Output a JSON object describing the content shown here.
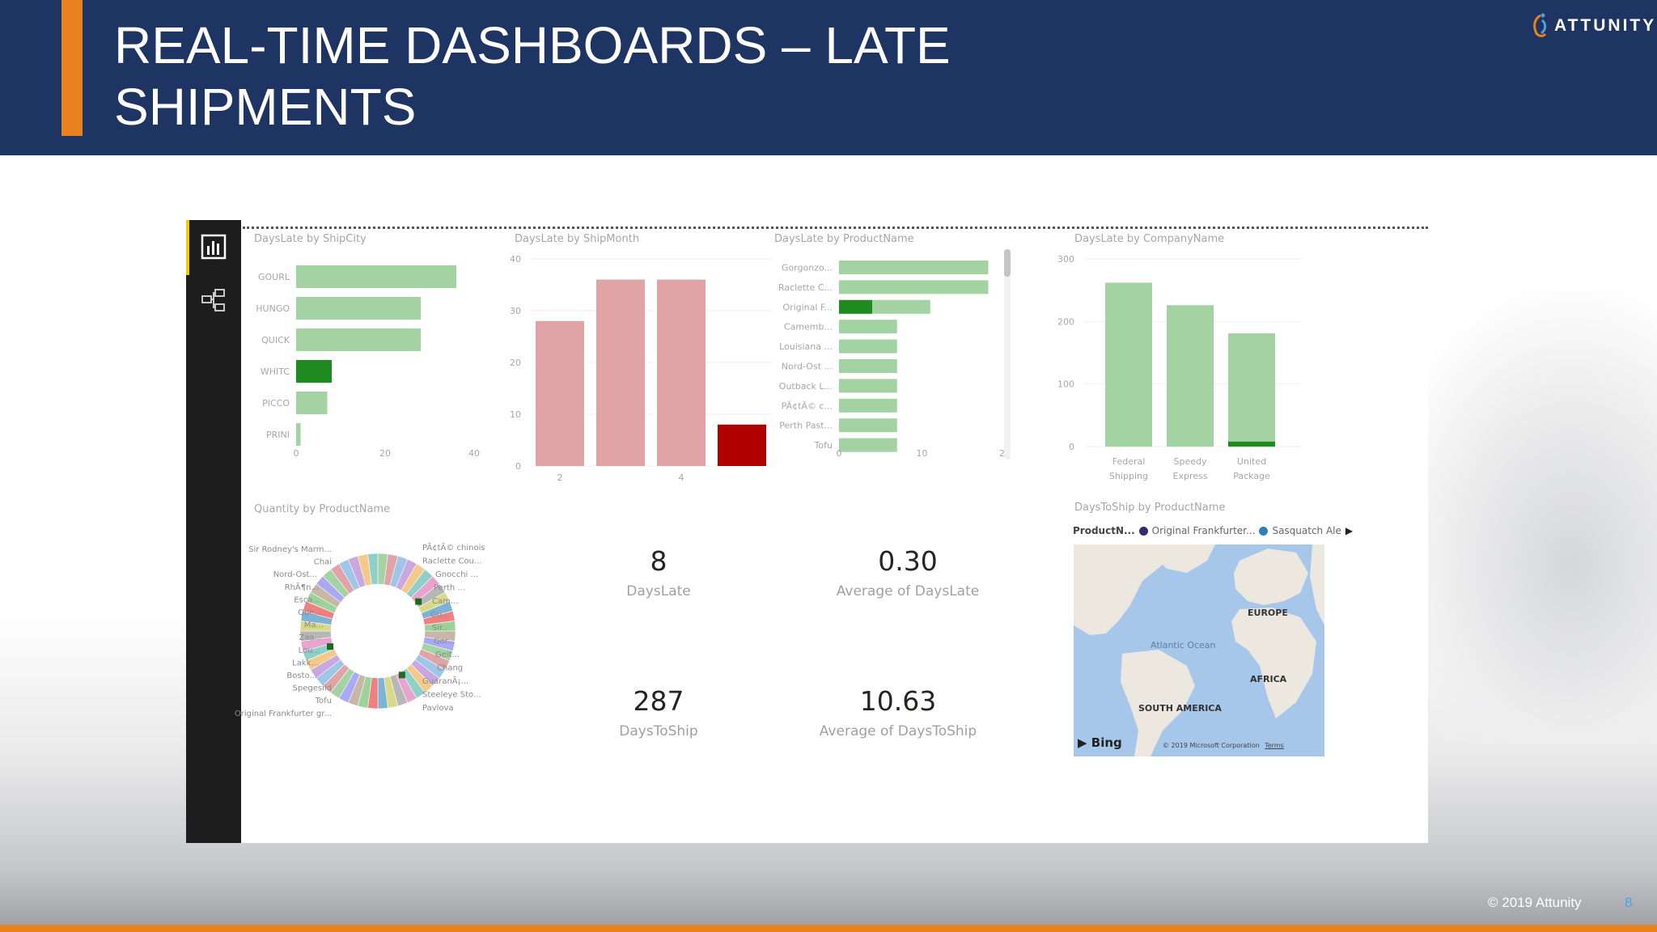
{
  "slide": {
    "title_line1": "REAL-TIME DASHBOARDS – LATE",
    "title_line2": "SHIPMENTS",
    "brand": "ATTUNITY",
    "footer": "© 2019 Attunity",
    "page_number": "8"
  },
  "colors": {
    "header_bg": "#1e3462",
    "accent_orange": "#e8821f",
    "bar_light_green": "#a3d3a3",
    "bar_dark_green": "#1f8a1f",
    "bar_light_red": "#e0a3a6",
    "bar_dark_red": "#b00000"
  },
  "nav": {
    "items": [
      {
        "icon": "report-icon",
        "active": true
      },
      {
        "icon": "data-model-icon",
        "active": false
      }
    ]
  },
  "chart_data": [
    {
      "type": "bar",
      "orientation": "horizontal",
      "title": "DaysLate by ShipCity",
      "categories": [
        "GOURL",
        "HUNGO",
        "QUICK",
        "WHITC",
        "PICCO",
        "PRINI"
      ],
      "values": [
        36,
        28,
        28,
        8,
        7,
        1
      ],
      "highlighted": [
        0,
        0,
        0,
        1,
        0,
        0
      ],
      "xlim": [
        0,
        40
      ],
      "xticks": [
        0,
        20,
        40
      ]
    },
    {
      "type": "bar",
      "title": "DaysLate by ShipMonth",
      "x": [
        2,
        3,
        4,
        5
      ],
      "values": [
        28,
        36,
        36,
        8
      ],
      "highlighted": [
        0,
        0,
        0,
        1
      ],
      "ylim": [
        0,
        40
      ],
      "yticks": [
        0,
        10,
        20,
        30,
        40
      ],
      "xticks": [
        2,
        4
      ]
    },
    {
      "type": "bar",
      "orientation": "horizontal",
      "title": "DaysLate by ProductName",
      "categories": [
        "Gorgonzo...",
        "Raclette C...",
        "Original F...",
        "Camemb...",
        "Louisiana ...",
        "Nord-Ost ...",
        "Outback L...",
        "PÃ¢tÃ© c...",
        "Perth Past...",
        "Tofu"
      ],
      "values": [
        18,
        18,
        11,
        7,
        7,
        7,
        7,
        7,
        7,
        7
      ],
      "highlighted_values": [
        0,
        0,
        4,
        0,
        0,
        0,
        0,
        0,
        0,
        0
      ],
      "xlim": [
        0,
        20
      ],
      "xticks": [
        0,
        10,
        20
      ]
    },
    {
      "type": "bar",
      "title": "DaysLate by CompanyName",
      "categories": [
        "Federal Shipping",
        "Speedy Express",
        "United Package"
      ],
      "category_lines": [
        [
          "Federal",
          "Shipping"
        ],
        [
          "Speedy",
          "Express"
        ],
        [
          "United",
          "Package"
        ]
      ],
      "values": [
        262,
        226,
        181
      ],
      "highlighted_values": [
        0,
        0,
        8
      ],
      "ylim": [
        0,
        300
      ],
      "yticks": [
        0,
        100,
        200,
        300
      ]
    },
    {
      "type": "pie",
      "variant": "donut",
      "title": "Quantity by ProductName",
      "labels_left": [
        "Sir Rodney's Marm...",
        "Chai",
        "Nord-Ost...",
        "RhÃ¶n...",
        "Esca...",
        "Que...",
        "Ma...",
        "Zaa...",
        "Lou...",
        "Lakk...",
        "Bosto...",
        "Spegesild",
        "Tofu",
        "Original Frankfurter gr..."
      ],
      "labels_right": [
        "PÃ¢tÃ© chinois",
        "Raclette Cou...",
        "Gnocchi ...",
        "Perth ...",
        "Cam...",
        "Gu...",
        "Sir...",
        "Gor...",
        "Geit...",
        "Chang",
        "GuaranÃ¡...",
        "Steeleye Sto...",
        "Pavlova"
      ]
    }
  ],
  "kpis": [
    {
      "value": "8",
      "label": "DaysLate"
    },
    {
      "value": "0.30",
      "label": "Average of DaysLate"
    },
    {
      "value": "287",
      "label": "DaysToShip"
    },
    {
      "value": "10.63",
      "label": "Average of DaysToShip"
    }
  ],
  "map": {
    "title": "DaysToShip by ProductName",
    "legend_title": "ProductN...",
    "legend_items": [
      {
        "label": "Original Frankfurter...",
        "color": "#3b2a6b"
      },
      {
        "label": "Sasquatch Ale",
        "color": "#2f7fb8"
      }
    ],
    "regions": [
      "EUROPE",
      "AFRICA",
      "SOUTH AMERICA"
    ],
    "ocean": "Atlantic Ocean",
    "provider": "Bing",
    "copyright": "© 2019 Microsoft Corporation",
    "terms": "Terms"
  }
}
